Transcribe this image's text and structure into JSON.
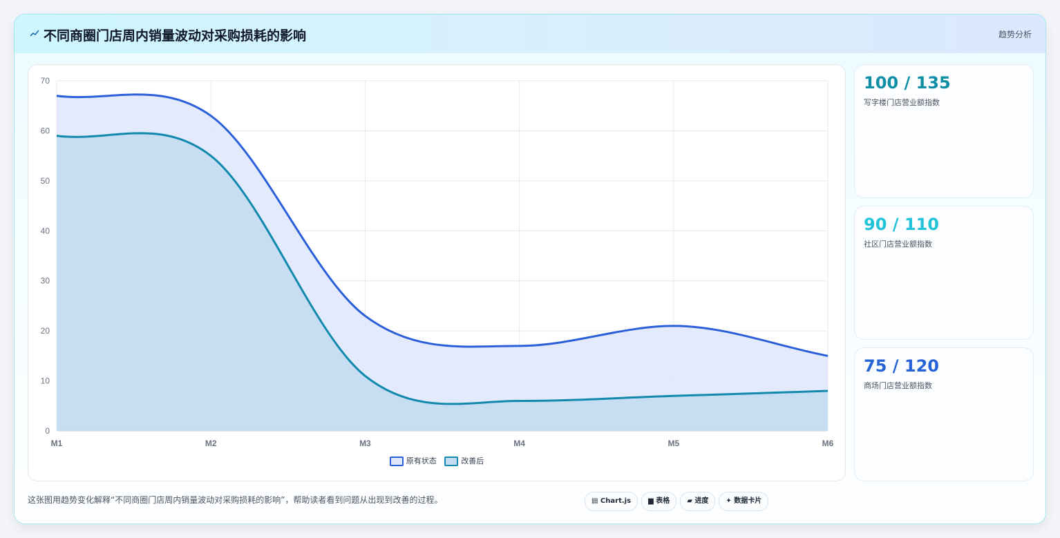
{
  "header": {
    "title": "不同商圈门店周内销量波动对采购损耗的影响",
    "tag": "趋势分析"
  },
  "stats": [
    {
      "value": "100 / 135",
      "label": "写字楼门店营业额指数",
      "color": "#0e8fa6"
    },
    {
      "value": "90 / 110",
      "label": "社区门店营业额指数",
      "color": "#22c3d8"
    },
    {
      "value": "75 / 120",
      "label": "商场门店营业额指数",
      "color": "#2563d6"
    }
  ],
  "footer": {
    "caption": "这张图用趋势变化解释“不同商圈门店周内销量波动对采购损耗的影响”，帮助读者看到问题从出现到改善的过程。",
    "pills": [
      "▤ Chart.js",
      "▆ 表格",
      "▰ 进度",
      "✦ 数据卡片"
    ]
  },
  "chart_data": {
    "type": "area",
    "x": [
      "M1",
      "M2",
      "M3",
      "M4",
      "M5",
      "M6"
    ],
    "ylim": [
      0,
      70
    ],
    "yticks": [
      0,
      10,
      20,
      30,
      40,
      50,
      60,
      70
    ],
    "grid": true,
    "legend": "bottom",
    "series": [
      {
        "name": "原有状态",
        "values": [
          67,
          63,
          23,
          17,
          21,
          15
        ],
        "color": "#2b5fd9",
        "fill": "#dfe8fb"
      },
      {
        "name": "改善后",
        "values": [
          59,
          55,
          11,
          6,
          7,
          8
        ],
        "color": "#1189ad",
        "fill": "#c4dcf1"
      }
    ]
  }
}
